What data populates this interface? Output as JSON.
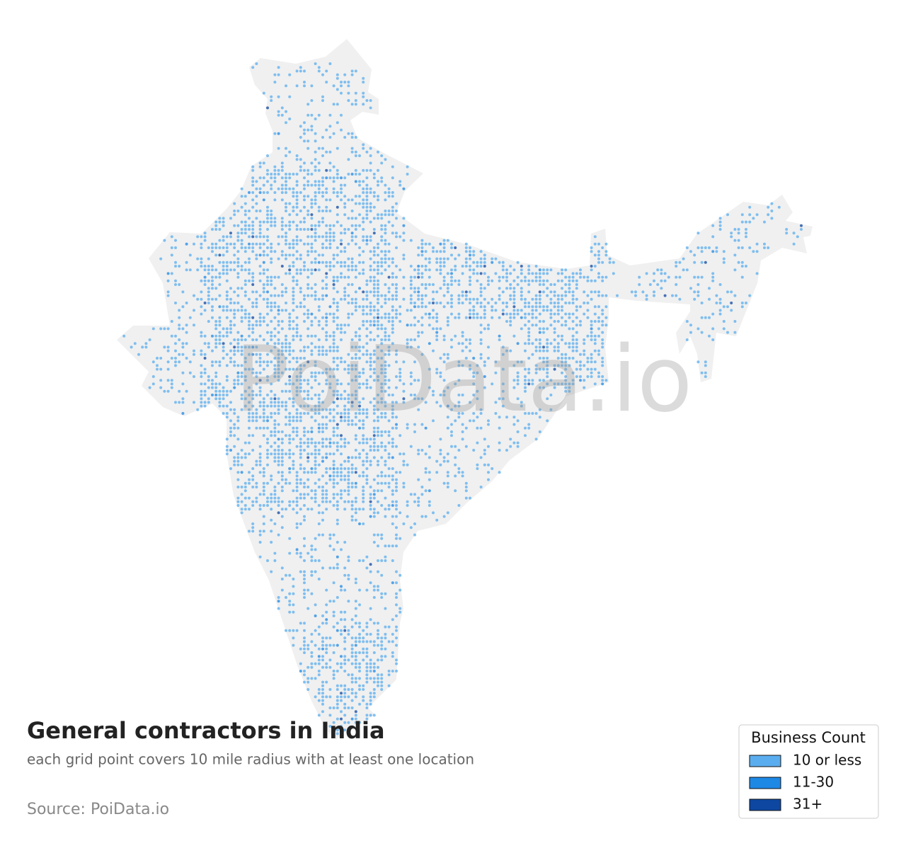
{
  "title": "General contractors in India",
  "subtitle": "each grid point covers 10 mile radius with at least one location",
  "source": "Source: PoiData.io",
  "watermark": "PoiData.io",
  "legend": {
    "title": "Business Count",
    "items": [
      {
        "label": "10 or less",
        "color": "#5aaeef"
      },
      {
        "label": "11-30",
        "color": "#1e88e5"
      },
      {
        "label": "31+",
        "color": "#0d47a1"
      }
    ]
  }
}
